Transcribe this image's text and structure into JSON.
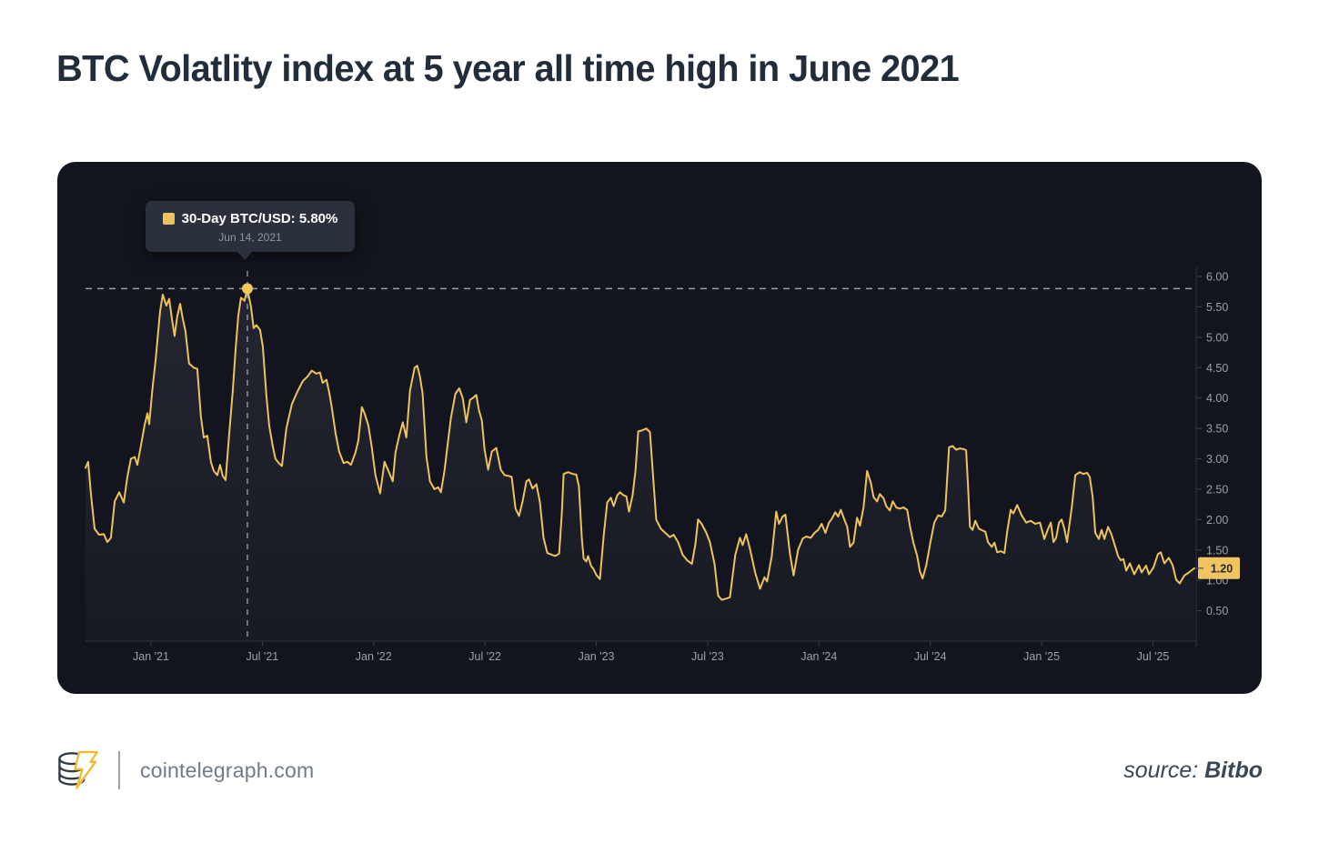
{
  "header": {
    "title": "BTC Volatlity index at 5 year all time high in June 2021"
  },
  "tooltip": {
    "title": "30-Day BTC/USD: 5.80%",
    "date": "Jun 14, 2021",
    "swatch_color": "#F0C25C"
  },
  "footer": {
    "domain": "cointelegraph.com",
    "source_label": "source:",
    "source_name": "Bitbo"
  },
  "colors": {
    "panel_bg": "#12151D",
    "line": "#EFC25C",
    "dot": "#F2C55F",
    "badge_bg": "#F0C45F",
    "badge_text": "#23272F",
    "axis_line": "#2B313C",
    "tick_label": "#99A1AC",
    "dashed_line": "#C7CDD8",
    "title_text": "#222D3B"
  },
  "chart_data": {
    "type": "line",
    "area_fill": true,
    "series_name": "30-Day BTC/USD Volatility (%)",
    "xlim": [
      2020.706,
      2025.694
    ],
    "ylim": [
      0,
      6.0
    ],
    "grid": false,
    "legend_position": "tooltip",
    "y_ticks": [
      {
        "v": 0.5,
        "label": "0.50"
      },
      {
        "v": 1.0,
        "label": "1.00"
      },
      {
        "v": 1.5,
        "label": "1.50"
      },
      {
        "v": 2.0,
        "label": "2.00"
      },
      {
        "v": 2.5,
        "label": "2.50"
      },
      {
        "v": 3.0,
        "label": "3.00"
      },
      {
        "v": 3.5,
        "label": "3.50"
      },
      {
        "v": 4.0,
        "label": "4.00"
      },
      {
        "v": 4.5,
        "label": "4.50"
      },
      {
        "v": 5.0,
        "label": "5.00"
      },
      {
        "v": 5.5,
        "label": "5.50"
      },
      {
        "v": 6.0,
        "label": "6.00"
      }
    ],
    "x_ticks": [
      {
        "t": 2021.0,
        "label": "Jan '21"
      },
      {
        "t": 2021.5,
        "label": "Jul '21"
      },
      {
        "t": 2022.0,
        "label": "Jan '22"
      },
      {
        "t": 2022.5,
        "label": "Jul '22"
      },
      {
        "t": 2023.0,
        "label": "Jan '23"
      },
      {
        "t": 2023.5,
        "label": "Jul '23"
      },
      {
        "t": 2024.0,
        "label": "Jan '24"
      },
      {
        "t": 2024.5,
        "label": "Jul '24"
      },
      {
        "t": 2025.0,
        "label": "Jan '25"
      },
      {
        "t": 2025.5,
        "label": "Jul '25"
      }
    ],
    "highlight": {
      "t": 2021.433,
      "value": 5.8,
      "date": "Jun 14, 2021",
      "label": "30-Day BTC/USD: 5.80%"
    },
    "current": {
      "value": 1.2,
      "label": "1.20"
    },
    "points": [
      [
        2020.706,
        2.85
      ],
      [
        2020.718,
        2.95
      ],
      [
        2020.731,
        2.4
      ],
      [
        2020.747,
        1.85
      ],
      [
        2020.767,
        1.75
      ],
      [
        2020.788,
        1.76
      ],
      [
        2020.804,
        1.63
      ],
      [
        2020.82,
        1.7
      ],
      [
        2020.837,
        2.3
      ],
      [
        2020.857,
        2.45
      ],
      [
        2020.878,
        2.28
      ],
      [
        2020.894,
        2.7
      ],
      [
        2020.91,
        3.0
      ],
      [
        2020.927,
        3.03
      ],
      [
        2020.939,
        2.9
      ],
      [
        2020.959,
        3.3
      ],
      [
        2020.971,
        3.55
      ],
      [
        2020.984,
        3.75
      ],
      [
        2020.992,
        3.57
      ],
      [
        2021.008,
        4.2
      ],
      [
        2021.02,
        4.6
      ],
      [
        2021.041,
        5.43
      ],
      [
        2021.053,
        5.7
      ],
      [
        2021.069,
        5.52
      ],
      [
        2021.082,
        5.63
      ],
      [
        2021.094,
        5.3
      ],
      [
        2021.106,
        5.02
      ],
      [
        2021.118,
        5.35
      ],
      [
        2021.131,
        5.55
      ],
      [
        2021.143,
        5.3
      ],
      [
        2021.155,
        5.1
      ],
      [
        2021.171,
        4.57
      ],
      [
        2021.192,
        4.5
      ],
      [
        2021.208,
        4.48
      ],
      [
        2021.224,
        3.7
      ],
      [
        2021.237,
        3.35
      ],
      [
        2021.253,
        3.38
      ],
      [
        2021.269,
        2.95
      ],
      [
        2021.282,
        2.8
      ],
      [
        2021.298,
        2.73
      ],
      [
        2021.31,
        2.9
      ],
      [
        2021.322,
        2.72
      ],
      [
        2021.335,
        2.65
      ],
      [
        2021.351,
        3.4
      ],
      [
        2021.367,
        4.1
      ],
      [
        2021.38,
        4.8
      ],
      [
        2021.392,
        5.35
      ],
      [
        2021.404,
        5.65
      ],
      [
        2021.42,
        5.6
      ],
      [
        2021.433,
        5.8
      ],
      [
        2021.449,
        5.5
      ],
      [
        2021.461,
        5.15
      ],
      [
        2021.473,
        5.2
      ],
      [
        2021.49,
        5.12
      ],
      [
        2021.502,
        4.85
      ],
      [
        2021.518,
        4.05
      ],
      [
        2021.531,
        3.55
      ],
      [
        2021.547,
        3.2
      ],
      [
        2021.559,
        3.0
      ],
      [
        2021.576,
        2.92
      ],
      [
        2021.588,
        2.88
      ],
      [
        2021.608,
        3.5
      ],
      [
        2021.633,
        3.9
      ],
      [
        2021.657,
        4.1
      ],
      [
        2021.682,
        4.28
      ],
      [
        2021.702,
        4.35
      ],
      [
        2021.722,
        4.45
      ],
      [
        2021.743,
        4.4
      ],
      [
        2021.759,
        4.42
      ],
      [
        2021.771,
        4.25
      ],
      [
        2021.788,
        4.3
      ],
      [
        2021.8,
        4.1
      ],
      [
        2021.812,
        3.85
      ],
      [
        2021.829,
        3.42
      ],
      [
        2021.845,
        3.12
      ],
      [
        2021.865,
        2.93
      ],
      [
        2021.882,
        2.95
      ],
      [
        2021.898,
        2.9
      ],
      [
        2021.918,
        3.1
      ],
      [
        2021.931,
        3.3
      ],
      [
        2021.947,
        3.85
      ],
      [
        2021.959,
        3.75
      ],
      [
        2021.976,
        3.55
      ],
      [
        2021.992,
        3.18
      ],
      [
        2022.008,
        2.73
      ],
      [
        2022.029,
        2.43
      ],
      [
        2022.049,
        2.95
      ],
      [
        2022.069,
        2.78
      ],
      [
        2022.086,
        2.63
      ],
      [
        2022.098,
        3.1
      ],
      [
        2022.114,
        3.37
      ],
      [
        2022.131,
        3.6
      ],
      [
        2022.147,
        3.35
      ],
      [
        2022.163,
        4.12
      ],
      [
        2022.184,
        4.5
      ],
      [
        2022.196,
        4.53
      ],
      [
        2022.208,
        4.35
      ],
      [
        2022.22,
        4.07
      ],
      [
        2022.237,
        3.03
      ],
      [
        2022.253,
        2.63
      ],
      [
        2022.273,
        2.5
      ],
      [
        2022.29,
        2.53
      ],
      [
        2022.302,
        2.45
      ],
      [
        2022.318,
        2.8
      ],
      [
        2022.331,
        3.2
      ],
      [
        2022.347,
        3.67
      ],
      [
        2022.367,
        4.07
      ],
      [
        2022.384,
        4.16
      ],
      [
        2022.4,
        4.0
      ],
      [
        2022.416,
        3.6
      ],
      [
        2022.433,
        3.97
      ],
      [
        2022.445,
        4.0
      ],
      [
        2022.461,
        4.05
      ],
      [
        2022.473,
        3.8
      ],
      [
        2022.486,
        3.63
      ],
      [
        2022.498,
        3.15
      ],
      [
        2022.514,
        2.82
      ],
      [
        2022.531,
        3.12
      ],
      [
        2022.551,
        3.18
      ],
      [
        2022.571,
        2.82
      ],
      [
        2022.588,
        2.73
      ],
      [
        2022.604,
        2.72
      ],
      [
        2022.62,
        2.7
      ],
      [
        2022.637,
        2.18
      ],
      [
        2022.653,
        2.06
      ],
      [
        2022.669,
        2.3
      ],
      [
        2022.686,
        2.63
      ],
      [
        2022.698,
        2.66
      ],
      [
        2022.714,
        2.51
      ],
      [
        2022.731,
        2.58
      ],
      [
        2022.747,
        2.28
      ],
      [
        2022.763,
        1.7
      ],
      [
        2022.78,
        1.45
      ],
      [
        2022.8,
        1.42
      ],
      [
        2022.816,
        1.4
      ],
      [
        2022.833,
        1.44
      ],
      [
        2022.845,
        2.1
      ],
      [
        2022.853,
        2.75
      ],
      [
        2022.873,
        2.78
      ],
      [
        2022.894,
        2.75
      ],
      [
        2022.91,
        2.74
      ],
      [
        2022.922,
        2.55
      ],
      [
        2022.935,
        1.7
      ],
      [
        2022.943,
        1.36
      ],
      [
        2022.955,
        1.31
      ],
      [
        2022.963,
        1.4
      ],
      [
        2022.976,
        1.24
      ],
      [
        2022.988,
        1.18
      ],
      [
        2023.0,
        1.09
      ],
      [
        2023.016,
        1.02
      ],
      [
        2023.033,
        1.73
      ],
      [
        2023.049,
        2.28
      ],
      [
        2023.065,
        2.36
      ],
      [
        2023.078,
        2.22
      ],
      [
        2023.094,
        2.4
      ],
      [
        2023.106,
        2.45
      ],
      [
        2023.122,
        2.4
      ],
      [
        2023.135,
        2.38
      ],
      [
        2023.147,
        2.13
      ],
      [
        2023.163,
        2.4
      ],
      [
        2023.176,
        2.8
      ],
      [
        2023.188,
        3.45
      ],
      [
        2023.208,
        3.47
      ],
      [
        2023.224,
        3.5
      ],
      [
        2023.241,
        3.44
      ],
      [
        2023.257,
        2.6
      ],
      [
        2023.269,
        2.0
      ],
      [
        2023.29,
        1.85
      ],
      [
        2023.31,
        1.78
      ],
      [
        2023.331,
        1.71
      ],
      [
        2023.347,
        1.75
      ],
      [
        2023.367,
        1.63
      ],
      [
        2023.388,
        1.42
      ],
      [
        2023.408,
        1.33
      ],
      [
        2023.429,
        1.27
      ],
      [
        2023.445,
        1.6
      ],
      [
        2023.457,
        2.0
      ],
      [
        2023.473,
        1.93
      ],
      [
        2023.494,
        1.78
      ],
      [
        2023.51,
        1.63
      ],
      [
        2023.531,
        1.27
      ],
      [
        2023.547,
        0.75
      ],
      [
        2023.563,
        0.68
      ],
      [
        2023.584,
        0.7
      ],
      [
        2023.6,
        0.72
      ],
      [
        2023.624,
        1.42
      ],
      [
        2023.645,
        1.7
      ],
      [
        2023.657,
        1.58
      ],
      [
        2023.673,
        1.76
      ],
      [
        2023.69,
        1.52
      ],
      [
        2023.714,
        1.12
      ],
      [
        2023.735,
        0.86
      ],
      [
        2023.755,
        1.05
      ],
      [
        2023.767,
        0.98
      ],
      [
        2023.788,
        1.4
      ],
      [
        2023.808,
        2.13
      ],
      [
        2023.82,
        1.93
      ],
      [
        2023.837,
        2.05
      ],
      [
        2023.849,
        2.08
      ],
      [
        2023.869,
        1.45
      ],
      [
        2023.886,
        1.08
      ],
      [
        2023.906,
        1.5
      ],
      [
        2023.927,
        1.69
      ],
      [
        2023.943,
        1.72
      ],
      [
        2023.963,
        1.7
      ],
      [
        2023.98,
        1.78
      ],
      [
        2023.996,
        1.83
      ],
      [
        2024.012,
        1.93
      ],
      [
        2024.029,
        1.78
      ],
      [
        2024.045,
        1.95
      ],
      [
        2024.057,
        2.01
      ],
      [
        2024.073,
        2.12
      ],
      [
        2024.086,
        2.05
      ],
      [
        2024.098,
        2.16
      ],
      [
        2024.114,
        2.0
      ],
      [
        2024.127,
        1.88
      ],
      [
        2024.139,
        1.55
      ],
      [
        2024.155,
        1.62
      ],
      [
        2024.171,
        2.03
      ],
      [
        2024.184,
        1.9
      ],
      [
        2024.2,
        2.2
      ],
      [
        2024.216,
        2.8
      ],
      [
        2024.233,
        2.6
      ],
      [
        2024.245,
        2.37
      ],
      [
        2024.261,
        2.3
      ],
      [
        2024.273,
        2.42
      ],
      [
        2024.29,
        2.35
      ],
      [
        2024.302,
        2.22
      ],
      [
        2024.318,
        2.15
      ],
      [
        2024.331,
        2.3
      ],
      [
        2024.347,
        2.2
      ],
      [
        2024.363,
        2.18
      ],
      [
        2024.38,
        2.2
      ],
      [
        2024.396,
        2.16
      ],
      [
        2024.408,
        1.9
      ],
      [
        2024.424,
        1.62
      ],
      [
        2024.441,
        1.4
      ],
      [
        2024.453,
        1.15
      ],
      [
        2024.465,
        1.03
      ],
      [
        2024.482,
        1.25
      ],
      [
        2024.502,
        1.66
      ],
      [
        2024.518,
        1.95
      ],
      [
        2024.535,
        2.07
      ],
      [
        2024.551,
        2.05
      ],
      [
        2024.567,
        2.15
      ],
      [
        2024.584,
        3.19
      ],
      [
        2024.6,
        3.21
      ],
      [
        2024.616,
        3.15
      ],
      [
        2024.633,
        3.17
      ],
      [
        2024.649,
        3.16
      ],
      [
        2024.661,
        3.14
      ],
      [
        2024.669,
        2.58
      ],
      [
        2024.678,
        1.88
      ],
      [
        2024.69,
        1.83
      ],
      [
        2024.702,
        1.98
      ],
      [
        2024.718,
        1.85
      ],
      [
        2024.735,
        1.82
      ],
      [
        2024.747,
        1.8
      ],
      [
        2024.759,
        1.63
      ],
      [
        2024.776,
        1.55
      ],
      [
        2024.788,
        1.62
      ],
      [
        2024.8,
        1.46
      ],
      [
        2024.816,
        1.48
      ],
      [
        2024.833,
        1.45
      ],
      [
        2024.845,
        1.8
      ],
      [
        2024.861,
        2.16
      ],
      [
        2024.873,
        2.1
      ],
      [
        2024.89,
        2.24
      ],
      [
        2024.91,
        2.07
      ],
      [
        2024.931,
        1.95
      ],
      [
        2024.951,
        1.98
      ],
      [
        2024.971,
        1.93
      ],
      [
        2024.992,
        1.95
      ],
      [
        2025.012,
        1.68
      ],
      [
        2025.029,
        1.85
      ],
      [
        2025.041,
        1.95
      ],
      [
        2025.053,
        1.63
      ],
      [
        2025.065,
        1.7
      ],
      [
        2025.078,
        1.95
      ],
      [
        2025.09,
        2.0
      ],
      [
        2025.102,
        1.85
      ],
      [
        2025.114,
        1.63
      ],
      [
        2025.135,
        2.2
      ],
      [
        2025.151,
        2.73
      ],
      [
        2025.171,
        2.78
      ],
      [
        2025.188,
        2.75
      ],
      [
        2025.204,
        2.77
      ],
      [
        2025.216,
        2.7
      ],
      [
        2025.229,
        2.37
      ],
      [
        2025.241,
        1.78
      ],
      [
        2025.257,
        1.68
      ],
      [
        2025.269,
        1.83
      ],
      [
        2025.282,
        1.68
      ],
      [
        2025.298,
        1.88
      ],
      [
        2025.314,
        1.75
      ],
      [
        2025.331,
        1.55
      ],
      [
        2025.343,
        1.4
      ],
      [
        2025.355,
        1.33
      ],
      [
        2025.367,
        1.35
      ],
      [
        2025.38,
        1.16
      ],
      [
        2025.396,
        1.28
      ],
      [
        2025.416,
        1.1
      ],
      [
        2025.437,
        1.25
      ],
      [
        2025.449,
        1.13
      ],
      [
        2025.469,
        1.24
      ],
      [
        2025.482,
        1.1
      ],
      [
        2025.502,
        1.21
      ],
      [
        2025.522,
        1.43
      ],
      [
        2025.535,
        1.46
      ],
      [
        2025.551,
        1.28
      ],
      [
        2025.571,
        1.37
      ],
      [
        2025.588,
        1.25
      ],
      [
        2025.604,
        1.01
      ],
      [
        2025.62,
        0.95
      ],
      [
        2025.641,
        1.08
      ],
      [
        2025.661,
        1.13
      ],
      [
        2025.686,
        1.2
      ]
    ]
  }
}
